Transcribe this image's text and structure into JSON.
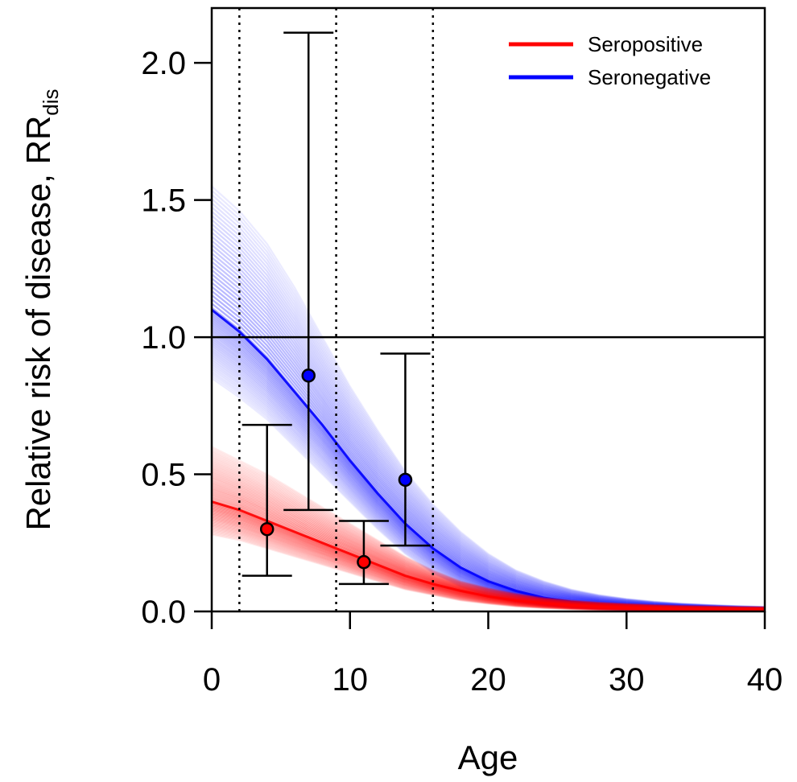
{
  "chart_data": {
    "type": "line",
    "xlabel": "Age",
    "ylabel": "Relative risk of disease, RR",
    "ylabel_sub": "dis",
    "xlim": [
      0,
      40
    ],
    "ylim": [
      0,
      2.2
    ],
    "x_ticks": [
      "0",
      "10",
      "20",
      "30",
      "40"
    ],
    "x_tick_values": [
      0,
      10,
      20,
      30,
      40
    ],
    "y_ticks": [
      "0.0",
      "0.5",
      "1.0",
      "1.5",
      "2.0"
    ],
    "y_tick_values": [
      0,
      0.5,
      1.0,
      1.5,
      2.0
    ],
    "reference_line_y": 1.0,
    "vertical_dotted_lines_x": [
      2,
      9,
      16
    ],
    "legend": {
      "placement": "top-right",
      "entries": [
        {
          "label": "Seropositive",
          "color": "#ff0000"
        },
        {
          "label": "Seronegative",
          "color": "#0000ff"
        }
      ]
    },
    "series": [
      {
        "name": "Seropositive",
        "color": "#ff0000",
        "x": [
          0,
          2,
          4,
          6,
          8,
          10,
          12,
          14,
          16,
          18,
          20,
          22,
          24,
          26,
          28,
          30,
          32,
          34,
          36,
          38,
          40
        ],
        "y_center": [
          0.4,
          0.37,
          0.33,
          0.29,
          0.25,
          0.21,
          0.17,
          0.13,
          0.1,
          0.075,
          0.055,
          0.04,
          0.03,
          0.022,
          0.017,
          0.013,
          0.01,
          0.008,
          0.007,
          0.006,
          0.005
        ],
        "y_upper": [
          0.6,
          0.55,
          0.5,
          0.44,
          0.38,
          0.32,
          0.26,
          0.2,
          0.15,
          0.11,
          0.085,
          0.065,
          0.05,
          0.04,
          0.033,
          0.028,
          0.024,
          0.021,
          0.019,
          0.017,
          0.016
        ],
        "y_lower": [
          0.28,
          0.26,
          0.23,
          0.2,
          0.17,
          0.14,
          0.11,
          0.08,
          0.06,
          0.04,
          0.028,
          0.018,
          0.012,
          0.008,
          0.005,
          0.004,
          0.003,
          0.002,
          0.002,
          0.001,
          0.001
        ]
      },
      {
        "name": "Seronegative",
        "color": "#0000ff",
        "x": [
          0,
          2,
          4,
          6,
          8,
          10,
          12,
          14,
          16,
          18,
          20,
          22,
          24,
          26,
          28,
          30,
          32,
          34,
          36,
          38,
          40
        ],
        "y_center": [
          1.1,
          1.02,
          0.92,
          0.8,
          0.68,
          0.55,
          0.43,
          0.32,
          0.23,
          0.16,
          0.11,
          0.075,
          0.05,
          0.035,
          0.025,
          0.018,
          0.013,
          0.01,
          0.008,
          0.006,
          0.005
        ],
        "y_upper": [
          1.55,
          1.46,
          1.34,
          1.18,
          1.0,
          0.82,
          0.66,
          0.51,
          0.39,
          0.29,
          0.21,
          0.15,
          0.11,
          0.08,
          0.06,
          0.046,
          0.036,
          0.029,
          0.024,
          0.02,
          0.017
        ],
        "y_lower": [
          0.85,
          0.78,
          0.7,
          0.6,
          0.5,
          0.4,
          0.3,
          0.21,
          0.14,
          0.09,
          0.055,
          0.033,
          0.02,
          0.012,
          0.008,
          0.005,
          0.003,
          0.002,
          0.002,
          0.001,
          0.001
        ]
      }
    ],
    "observations": [
      {
        "x": 4,
        "y": 0.3,
        "lower": 0.13,
        "upper": 0.68,
        "color": "#ff0000"
      },
      {
        "x": 7,
        "y": 0.86,
        "lower": 0.37,
        "upper": 2.11,
        "color": "#0000ff"
      },
      {
        "x": 11,
        "y": 0.18,
        "lower": 0.1,
        "upper": 0.33,
        "color": "#ff0000"
      },
      {
        "x": 14,
        "y": 0.48,
        "lower": 0.24,
        "upper": 0.94,
        "color": "#0000ff"
      }
    ]
  }
}
